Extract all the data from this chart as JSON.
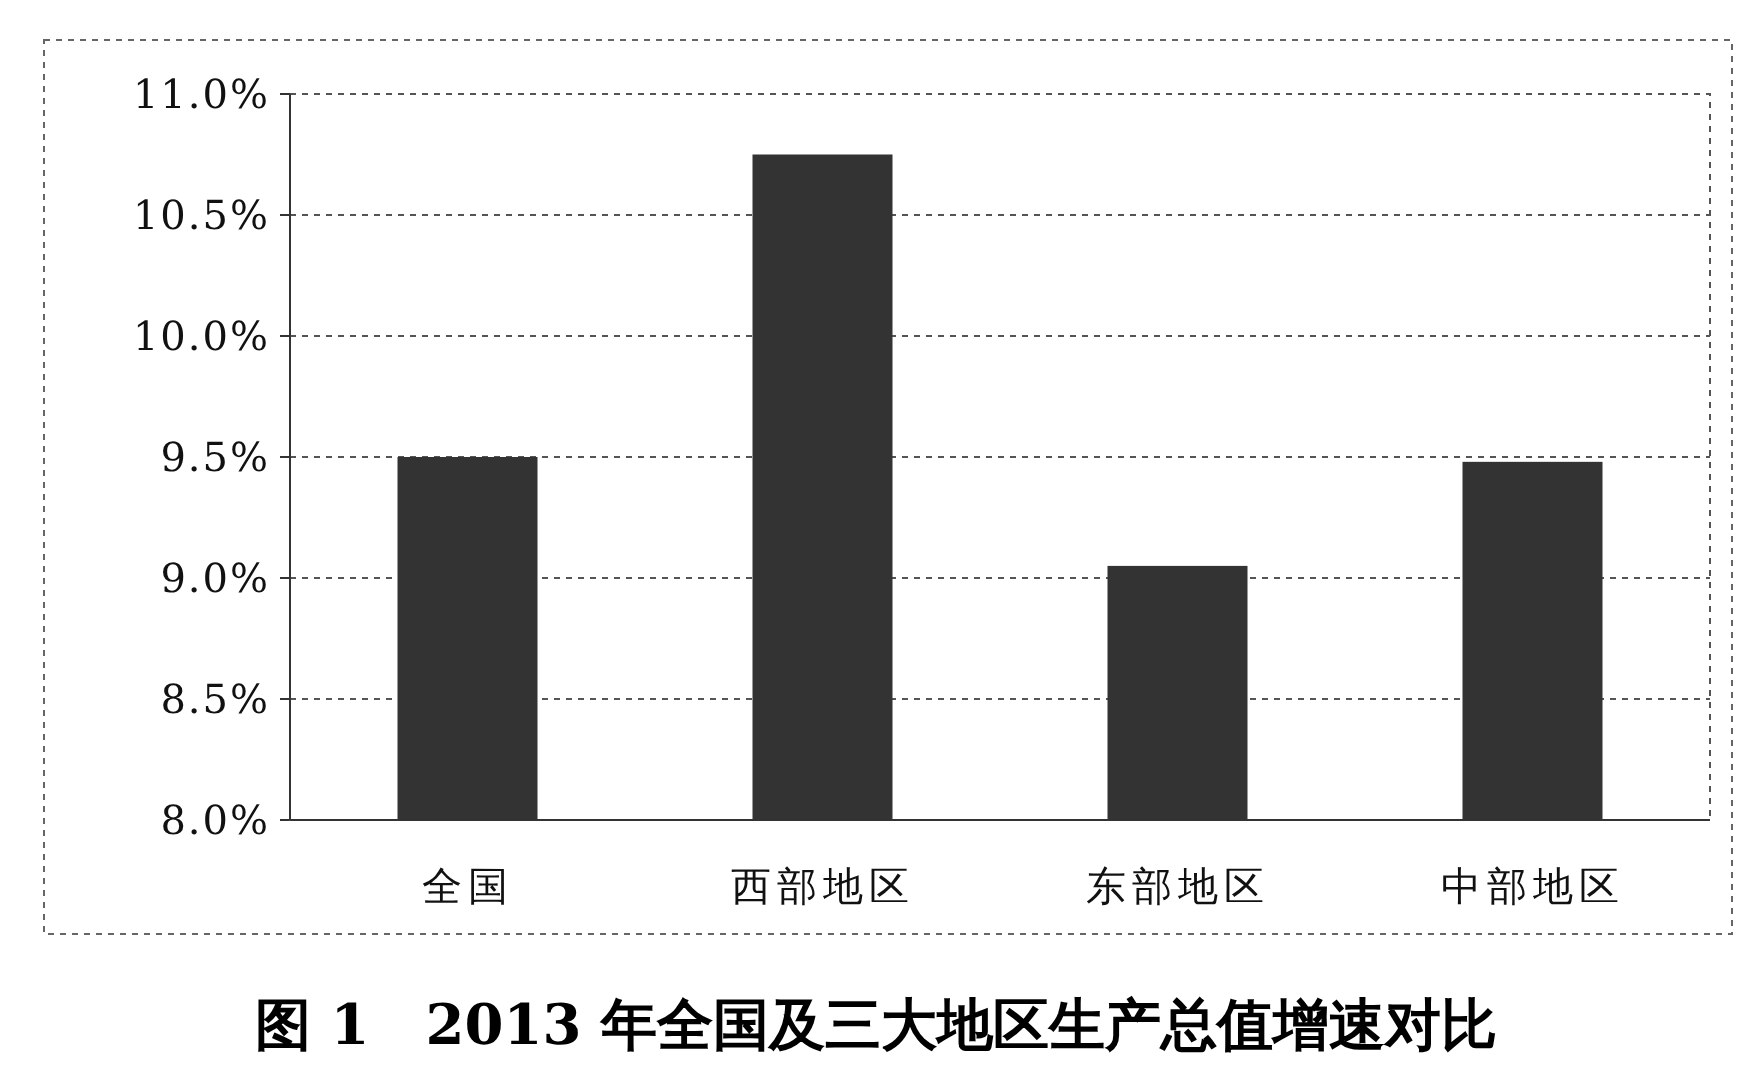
{
  "chart_data": {
    "type": "bar",
    "title": "图 1　2013 年全国及三大地区生产总值增速对比",
    "categories": [
      "全国",
      "西部地区",
      "东部地区",
      "中部地区"
    ],
    "values": [
      9.5,
      10.75,
      9.05,
      9.48
    ],
    "color": "#333333",
    "ylim": [
      8.0,
      11.0
    ],
    "yticks": [
      {
        "value": 8.0,
        "label": "8.0%"
      },
      {
        "value": 8.5,
        "label": "8.5%"
      },
      {
        "value": 9.0,
        "label": "9.0%"
      },
      {
        "value": 9.5,
        "label": "9.5%"
      },
      {
        "value": 10.0,
        "label": "10.0%"
      },
      {
        "value": 10.5,
        "label": "10.5%"
      },
      {
        "value": 11.0,
        "label": "11.0%"
      }
    ],
    "grid": "y"
  }
}
